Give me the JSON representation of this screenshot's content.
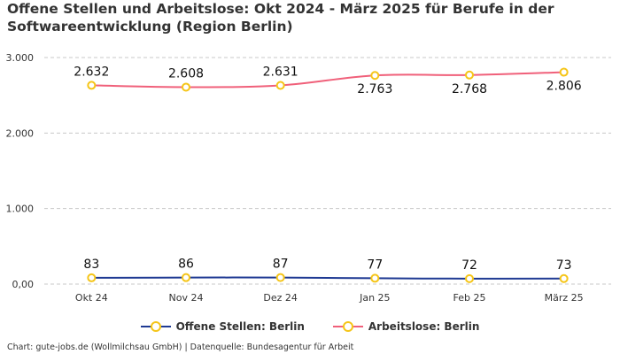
{
  "chart_data": {
    "type": "line",
    "title": "Offene Stellen und Arbeitslose: Okt 2024 - März 2025 für Berufe in der Softwareentwicklung (Region Berlin)",
    "categories": [
      "Okt 24",
      "Nov 24",
      "Dez 24",
      "Jan 25",
      "Feb 25",
      "März 25"
    ],
    "ylim": [
      0,
      3000
    ],
    "yticks": [
      0,
      1000,
      2000,
      3000
    ],
    "ytick_labels": [
      "0,00",
      "1.000",
      "2.000",
      "3.000"
    ],
    "grid": true,
    "legend_position": "bottom",
    "series": [
      {
        "name": "Offene Stellen: Berlin",
        "color": "#1f3a93",
        "marker_color": "#f5c518",
        "values": [
          83,
          86,
          87,
          77,
          72,
          73
        ],
        "labels": [
          "83",
          "86",
          "87",
          "77",
          "72",
          "73"
        ]
      },
      {
        "name": "Arbeitslose: Berlin",
        "color": "#f0607a",
        "marker_color": "#f5c518",
        "values": [
          2632,
          2608,
          2631,
          2763,
          2768,
          2806
        ],
        "labels": [
          "2.632",
          "2.608",
          "2.631",
          "2.763",
          "2.768",
          "2.806"
        ]
      }
    ]
  },
  "source": "Chart: gute-jobs.de (Wollmilchsau GmbH) | Datenquelle: Bundesagentur für Arbeit"
}
